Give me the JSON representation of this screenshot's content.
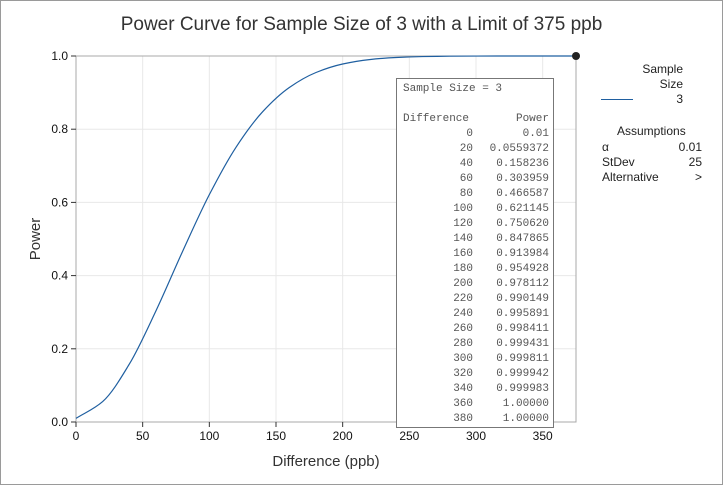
{
  "chart_data": {
    "type": "line",
    "title": "Power Curve for Sample Size of 3 with a Limit of 375 ppb",
    "xlabel": "Difference (ppb)",
    "ylabel": "Power",
    "xlim": [
      0,
      375
    ],
    "ylim": [
      0,
      1
    ],
    "x_ticks": [
      "0",
      "50",
      "100",
      "150",
      "200",
      "250",
      "300",
      "350"
    ],
    "y_ticks": [
      "0.0",
      "0.2",
      "0.4",
      "0.6",
      "0.8",
      "1.0"
    ],
    "grid": true,
    "series": [
      {
        "name": "3",
        "color": "#1f5fa0",
        "x": [
          0,
          20,
          40,
          60,
          80,
          100,
          120,
          140,
          160,
          180,
          200,
          220,
          240,
          260,
          280,
          300,
          320,
          340,
          360,
          375
        ],
        "y": [
          0.01,
          0.0559372,
          0.158236,
          0.303959,
          0.466587,
          0.621145,
          0.75062,
          0.847865,
          0.913984,
          0.954928,
          0.978112,
          0.990149,
          0.995891,
          0.998411,
          0.999431,
          0.999811,
          0.999942,
          0.999983,
          1.0,
          1.0
        ]
      }
    ],
    "marker": {
      "x": 375,
      "y": 1.0
    },
    "legend": {
      "title_line1": "Sample",
      "title_line2": "Size",
      "entries": [
        "3"
      ],
      "placement": "right"
    },
    "assumptions": {
      "title": "Assumptions",
      "rows": [
        {
          "label": "α",
          "value": "0.01"
        },
        {
          "label": "StDev",
          "value": "25"
        },
        {
          "label": "Alternative",
          "value": ">"
        }
      ]
    },
    "table": {
      "header": "Sample Size = 3",
      "col1": "Difference",
      "col2": "Power",
      "rows": [
        {
          "d": "0",
          "p": "0.01"
        },
        {
          "d": "20",
          "p": "0.0559372"
        },
        {
          "d": "40",
          "p": "0.158236"
        },
        {
          "d": "60",
          "p": "0.303959"
        },
        {
          "d": "80",
          "p": "0.466587"
        },
        {
          "d": "100",
          "p": "0.621145"
        },
        {
          "d": "120",
          "p": "0.750620"
        },
        {
          "d": "140",
          "p": "0.847865"
        },
        {
          "d": "160",
          "p": "0.913984"
        },
        {
          "d": "180",
          "p": "0.954928"
        },
        {
          "d": "200",
          "p": "0.978112"
        },
        {
          "d": "220",
          "p": "0.990149"
        },
        {
          "d": "240",
          "p": "0.995891"
        },
        {
          "d": "260",
          "p": "0.998411"
        },
        {
          "d": "280",
          "p": "0.999431"
        },
        {
          "d": "300",
          "p": "0.999811"
        },
        {
          "d": "320",
          "p": "0.999942"
        },
        {
          "d": "340",
          "p": "0.999983"
        },
        {
          "d": "360",
          "p": "1.00000"
        },
        {
          "d": "380",
          "p": "1.00000"
        }
      ]
    }
  }
}
